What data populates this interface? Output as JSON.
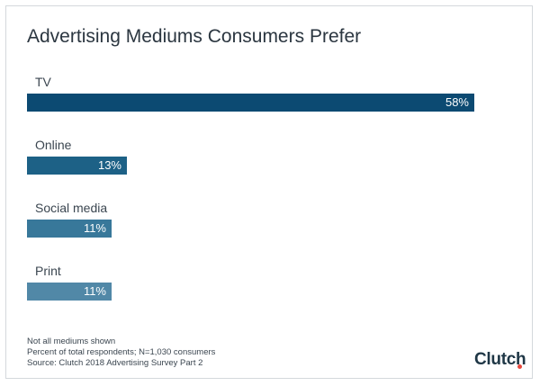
{
  "chart_data": {
    "type": "bar",
    "orientation": "horizontal",
    "title": "Advertising Mediums Consumers Prefer",
    "categories": [
      "TV",
      "Online",
      "Social media",
      "Print"
    ],
    "values": [
      58,
      13,
      11,
      11
    ],
    "value_labels": [
      "58%",
      "13%",
      "11%",
      "11%"
    ],
    "bar_colors": [
      "#0c4a72",
      "#1d6186",
      "#38789a",
      "#5188a7"
    ],
    "xlim": [
      0,
      58
    ],
    "grid": false,
    "legend": "none"
  },
  "notes": [
    "Not all mediums shown",
    "Percent of total respondents; N=1,030 consumers",
    "Source: Clutch 2018 Advertising Survey Part 2"
  ],
  "logo": {
    "text": "Clutch",
    "dot_color": "#e8483d"
  }
}
